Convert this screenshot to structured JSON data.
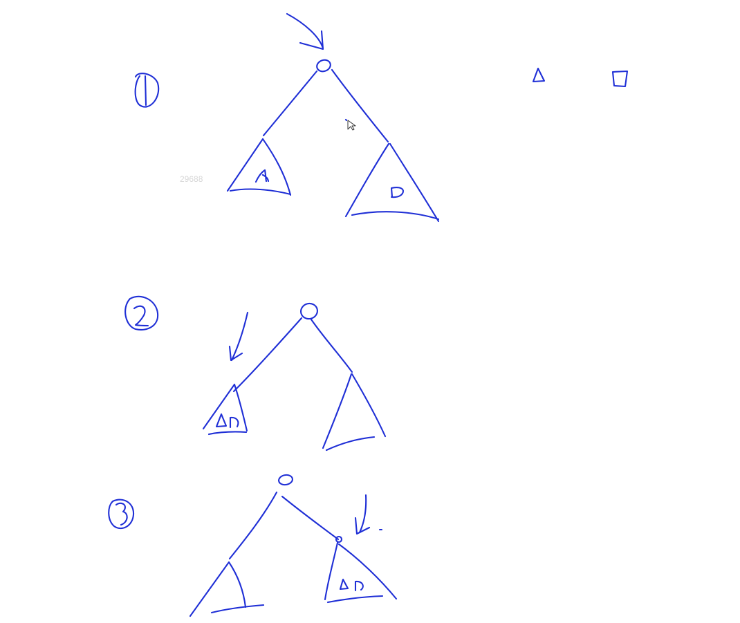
{
  "watermark": {
    "text": "29688"
  },
  "colors": {
    "ink": "#1f2fd6",
    "background": "#ffffff",
    "watermark": "#d7d7d7"
  },
  "icons": {
    "cursor": "mouse-pointer-icon"
  }
}
